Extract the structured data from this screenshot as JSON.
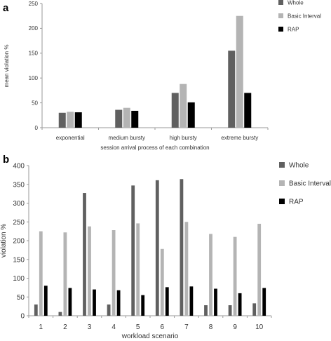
{
  "chart_data": [
    {
      "panel_label": "a",
      "type": "bar",
      "xlabel": "session arrival process of each combination",
      "ylabel": "mean violation %",
      "ylim": [
        0,
        250
      ],
      "yticks": [
        0,
        50,
        100,
        150,
        200,
        250
      ],
      "grid": false,
      "legend_position": "top-right",
      "categories": [
        "exponential",
        "medium bursty",
        "high bursty",
        "extreme bursty"
      ],
      "series": [
        {
          "name": "Whole",
          "color": "#606060",
          "values": [
            30,
            36,
            70,
            155
          ]
        },
        {
          "name": "Basic Interval",
          "color": "#b4b4b4",
          "values": [
            32,
            40,
            88,
            225
          ]
        },
        {
          "name": "RAP",
          "color": "#000000",
          "values": [
            31,
            34,
            51,
            70
          ]
        }
      ]
    },
    {
      "panel_label": "b",
      "type": "bar",
      "xlabel": "workload scenario",
      "ylabel": "violation %",
      "ylim": [
        0,
        400
      ],
      "yticks": [
        0,
        50,
        100,
        150,
        200,
        250,
        300,
        350,
        400
      ],
      "grid": false,
      "legend_position": "top-right",
      "categories": [
        "1",
        "2",
        "3",
        "4",
        "5",
        "6",
        "7",
        "8",
        "9",
        "10"
      ],
      "series": [
        {
          "name": "Whole",
          "color": "#606060",
          "values": [
            30,
            10,
            327,
            30,
            347,
            361,
            364,
            28,
            28,
            33
          ]
        },
        {
          "name": "Basic Interval",
          "color": "#b4b4b4",
          "values": [
            225,
            222,
            238,
            228,
            246,
            178,
            250,
            218,
            210,
            245
          ]
        },
        {
          "name": "RAP",
          "color": "#000000",
          "values": [
            80,
            74,
            70,
            68,
            55,
            76,
            78,
            72,
            60,
            74
          ]
        }
      ]
    }
  ]
}
